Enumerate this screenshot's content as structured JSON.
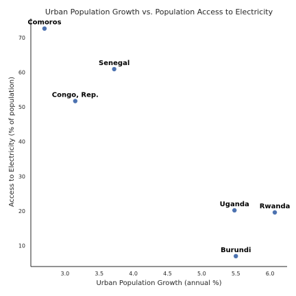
{
  "chart_data": {
    "type": "scatter",
    "title": "Urban Population Growth vs. Population Access to Electricity",
    "xlabel": "Urban Population Growth (annual %)",
    "ylabel": "Access to Electricity (% of population)",
    "xlim": [
      2.5,
      6.25
    ],
    "ylim": [
      4,
      75.5
    ],
    "xticks": [
      "3.0",
      "3.5",
      "4.0",
      "4.5",
      "5.0",
      "5.5",
      "6.0"
    ],
    "yticks": [
      "10",
      "20",
      "30",
      "40",
      "50",
      "60",
      "70"
    ],
    "grid": false,
    "point_color": "#4c72b0",
    "points": [
      {
        "label": "Comoros",
        "x": 2.7,
        "y": 72.6
      },
      {
        "label": "Senegal",
        "x": 3.72,
        "y": 60.9
      },
      {
        "label": "Congo, Rep.",
        "x": 3.15,
        "y": 51.7
      },
      {
        "label": "Uganda",
        "x": 5.48,
        "y": 20.2
      },
      {
        "label": "Rwanda",
        "x": 6.07,
        "y": 19.6
      },
      {
        "label": "Burundi",
        "x": 5.5,
        "y": 7.0
      }
    ]
  }
}
